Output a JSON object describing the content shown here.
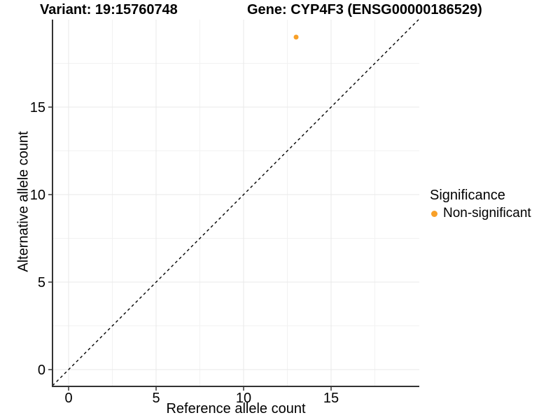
{
  "figure": {
    "titles": {
      "variant": "Variant: 19:15760748",
      "gene": "Gene: CYP4F3 (ENSG00000186529)"
    }
  },
  "chart_data": {
    "type": "scatter",
    "title": "Variant: 19:15760748  Gene: CYP4F3 (ENSG00000186529)",
    "xlabel": "Reference allele count",
    "ylabel": "Alternative allele count",
    "xlim": [
      -0.92,
      20.04
    ],
    "ylim": [
      -0.96,
      20.0
    ],
    "x_ticks": [
      0,
      5,
      10,
      15
    ],
    "y_ticks": [
      0,
      5,
      10,
      15
    ],
    "x_minor_ticks": [
      2.5,
      7.5,
      12.5,
      17.5
    ],
    "y_minor_ticks": [
      2.5,
      7.5,
      12.5,
      17.5
    ],
    "grid": true,
    "reference_line": {
      "type": "identity",
      "slope": 1,
      "intercept": 0,
      "style": "dashed",
      "color": "#000000"
    },
    "series": [
      {
        "name": "Non-significant",
        "color": "#F8A028",
        "points": [
          {
            "x": 13,
            "y": 19
          }
        ]
      }
    ],
    "legend": {
      "title": "Significance",
      "position": "right",
      "items": [
        {
          "label": "Non-significant",
          "color": "#F8A028"
        }
      ]
    },
    "colors": {
      "major_grid": "#E8E8E8",
      "minor_grid": "#F2F2F2",
      "axis_line": "#333333",
      "tick_mark": "#333333",
      "tick_label": "#000000",
      "point": "#F8A028"
    }
  }
}
